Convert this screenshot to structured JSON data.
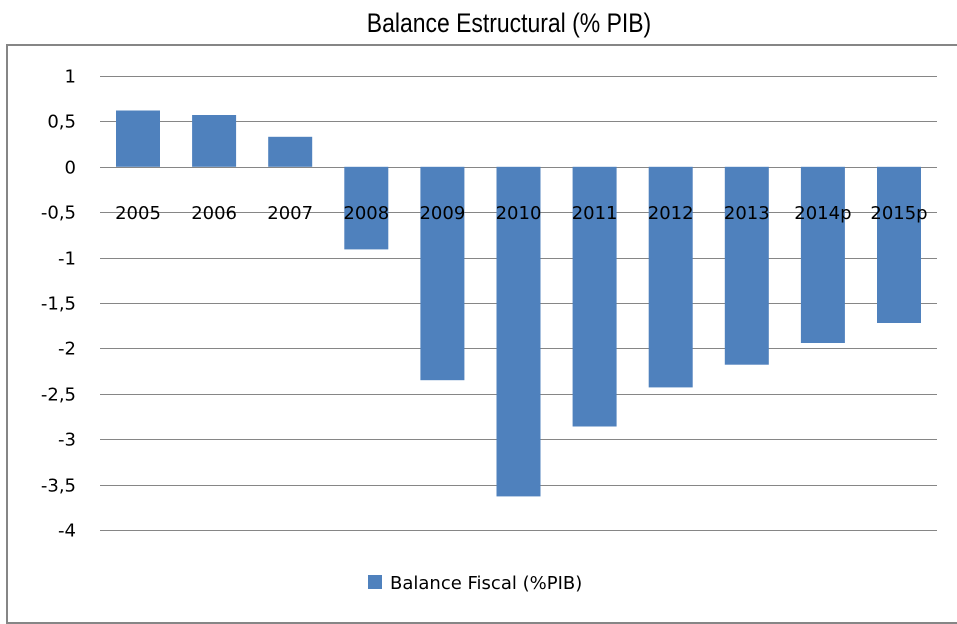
{
  "chart_data": {
    "type": "bar",
    "title": "Balance Estructural (% PIB)",
    "xlabel": "",
    "ylabel": "",
    "categories": [
      "2005",
      "2006",
      "2007",
      "2008",
      "2009",
      "2010",
      "2011",
      "2012",
      "2013",
      "2014p",
      "2015p"
    ],
    "series": [
      {
        "name": "Balance Fiscal (%PIB)",
        "values": [
          0.62,
          0.57,
          0.33,
          -0.91,
          -2.35,
          -3.63,
          -2.86,
          -2.43,
          -2.18,
          -1.94,
          -1.72
        ],
        "color": "#4f81bd"
      }
    ],
    "ylim": [
      -4,
      1
    ],
    "yticks": [
      1,
      0.5,
      0,
      -0.5,
      -1,
      -1.5,
      -2,
      -2.5,
      -3,
      -3.5,
      -4
    ],
    "ytick_labels": [
      "1",
      "0,5",
      "0",
      "-0,5",
      "-1",
      "-1,5",
      "-2",
      "-2,5",
      "-3",
      "-3,5",
      "-4"
    ],
    "grid": true,
    "gridline_color": "#868686",
    "legend_position": "bottom"
  }
}
